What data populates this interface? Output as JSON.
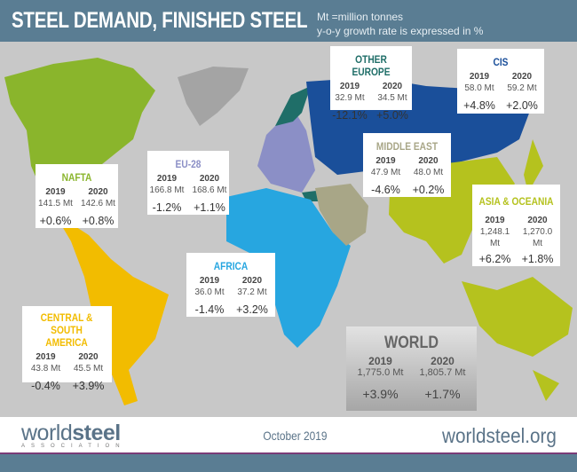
{
  "header": {
    "title": "STEEL DEMAND, FINISHED STEEL",
    "note_line1": "Mt =million tonnes",
    "note_line2": "y-o-y growth rate is expressed in %"
  },
  "colors": {
    "nafta": "#8ab52c",
    "eu28": "#8b8fc6",
    "other_europe": "#1f6e68",
    "cis": "#1a4f9a",
    "middle_east": "#a8a687",
    "asia_oceania": "#b5c21e",
    "africa": "#27a6e0",
    "csa": "#f2bc00",
    "greenland": "#a4a4a4",
    "header": "#5a7d93"
  },
  "regions": {
    "nafta": {
      "name": "NAFTA",
      "y1": "2019",
      "y2": "2020",
      "v1": "141.5 Mt",
      "v2": "142.6 Mt",
      "g1": "+0.6%",
      "g2": "+0.8%"
    },
    "eu28": {
      "name": "EU-28",
      "y1": "2019",
      "y2": "2020",
      "v1": "166.8 Mt",
      "v2": "168.6 Mt",
      "g1": "-1.2%",
      "g2": "+1.1%"
    },
    "other_europe": {
      "name": "OTHER EUROPE",
      "y1": "2019",
      "y2": "2020",
      "v1": "32.9 Mt",
      "v2": "34.5 Mt",
      "g1": "-12.1%",
      "g2": "+5.0%"
    },
    "cis": {
      "name": "CIS",
      "y1": "2019",
      "y2": "2020",
      "v1": "58.0 Mt",
      "v2": "59.2 Mt",
      "g1": "+4.8%",
      "g2": "+2.0%"
    },
    "middle_east": {
      "name": "MIDDLE EAST",
      "y1": "2019",
      "y2": "2020",
      "v1": "47.9 Mt",
      "v2": "48.0 Mt",
      "g1": "-4.6%",
      "g2": "+0.2%"
    },
    "asia_oceania": {
      "name": "ASIA & OCEANIA",
      "y1": "2019",
      "y2": "2020",
      "v1": "1,248.1 Mt",
      "v2": "1,270.0 Mt",
      "g1": "+6.2%",
      "g2": "+1.8%"
    },
    "africa": {
      "name": "AFRICA",
      "y1": "2019",
      "y2": "2020",
      "v1": "36.0 Mt",
      "v2": "37.2 Mt",
      "g1": "-1.4%",
      "g2": "+3.2%"
    },
    "csa": {
      "name": "CENTRAL & SOUTH AMERICA",
      "y1": "2019",
      "y2": "2020",
      "v1": "43.8 Mt",
      "v2": "45.5 Mt",
      "g1": "-0.4%",
      "g2": "+3.9%"
    },
    "world": {
      "name": "WORLD",
      "y1": "2019",
      "y2": "2020",
      "v1": "1,775.0 Mt",
      "v2": "1,805.7 Mt",
      "g1": "+3.9%",
      "g2": "+1.7%"
    }
  },
  "footer": {
    "logo_word1": "world",
    "logo_word2": "steel",
    "logo_sub": "ASSOCIATION",
    "date": "October 2019",
    "url": "worldsteel.org"
  }
}
